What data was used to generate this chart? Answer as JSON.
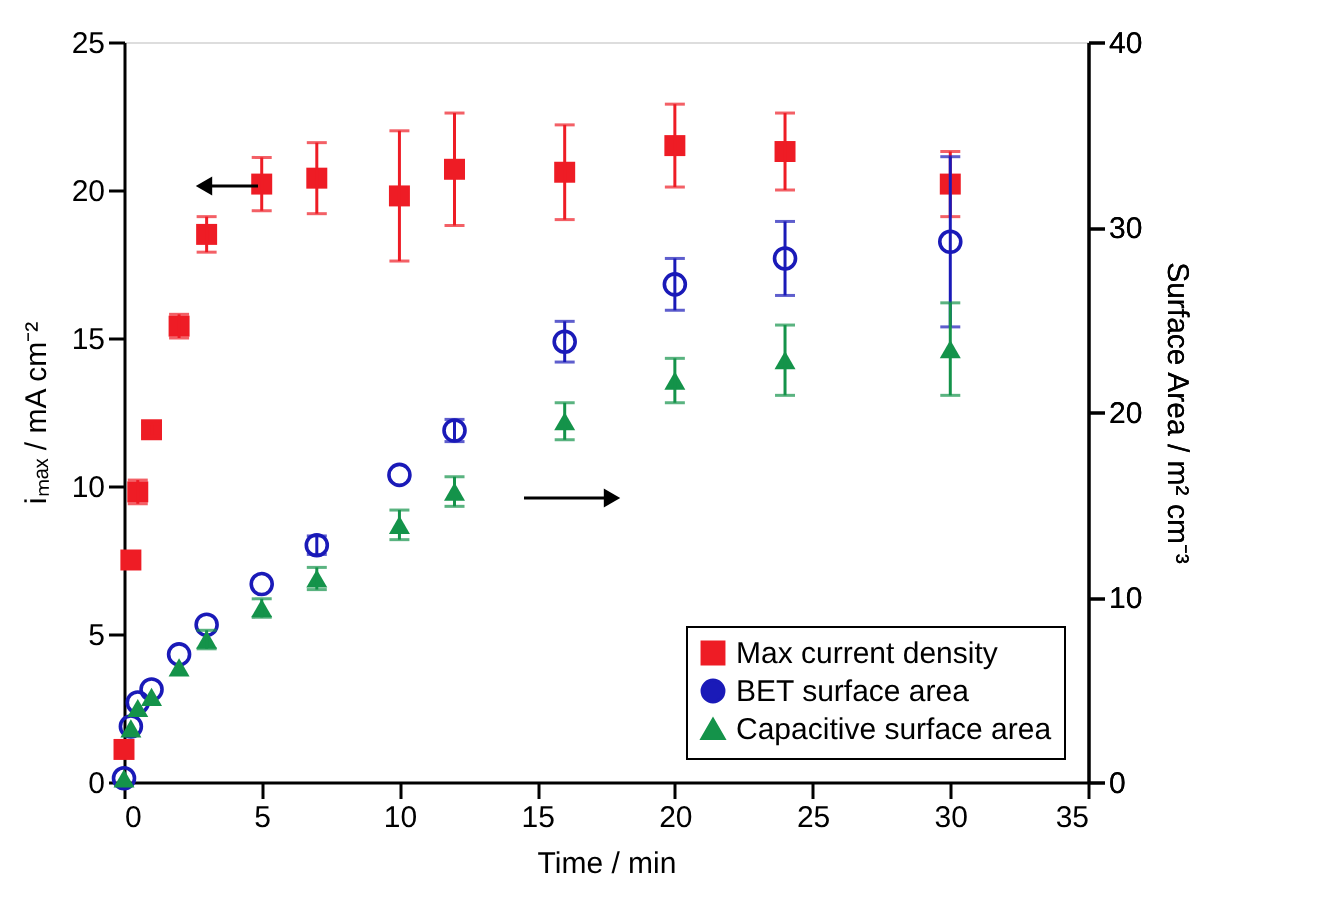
{
  "chart_data": {
    "type": "scatter",
    "xlabel": "Time / min",
    "ylabel": "iₘₐₓ / mA cm⁻²",
    "y2label": "Surface Area / m² cm⁻³",
    "x": [
      0,
      0.25,
      0.5,
      1,
      2,
      3,
      5,
      7,
      10,
      12,
      16,
      20,
      24,
      30
    ],
    "xlim": [
      0,
      35
    ],
    "xticks": [
      0,
      5,
      10,
      15,
      20,
      25,
      30,
      35
    ],
    "ylim": [
      0,
      25
    ],
    "yticks": [
      0,
      5,
      10,
      15,
      20,
      25
    ],
    "y2lim": [
      0,
      40
    ],
    "y2ticks": [
      0,
      10,
      20,
      30,
      40
    ],
    "grid": false,
    "legend": "bottom right",
    "series": [
      {
        "name": "Max current density",
        "color": "#ee1c25",
        "marker": "square",
        "values": [
          1.1,
          7.5,
          9.8,
          11.9,
          15.4,
          18.5,
          20.2,
          20.4,
          19.8,
          20.7,
          20.6,
          21.5,
          21.3,
          20.2
        ],
        "errors": [
          null,
          null,
          0.4,
          0.2,
          0.4,
          0.6,
          0.9,
          1.2,
          2.2,
          1.9,
          1.6,
          1.4,
          1.3,
          1.1
        ]
      },
      {
        "name": "BET surface area",
        "color": "#1a1ab8",
        "marker": "circle",
        "axis": "y2",
        "values": [
          0.2,
          3.0,
          4.3,
          5.0,
          6.9,
          8.5,
          10.7,
          12.8,
          16.6,
          19.0,
          23.8,
          26.9,
          28.3,
          29.2
        ],
        "errors": [
          null,
          null,
          null,
          null,
          null,
          null,
          null,
          0.5,
          null,
          0.6,
          1.1,
          1.4,
          2.0,
          4.6
        ]
      },
      {
        "name": "Capacitive surface area",
        "color": "#14934a",
        "marker": "triangle",
        "axis": "y2",
        "values": [
          0.2,
          2.9,
          4.0,
          4.6,
          6.2,
          7.7,
          9.4,
          11.0,
          13.9,
          15.7,
          19.5,
          21.7,
          22.8,
          23.4
        ],
        "errors": [
          null,
          null,
          null,
          null,
          null,
          0.5,
          0.5,
          0.6,
          0.8,
          0.8,
          1.0,
          1.2,
          1.9,
          2.5
        ]
      }
    ]
  }
}
